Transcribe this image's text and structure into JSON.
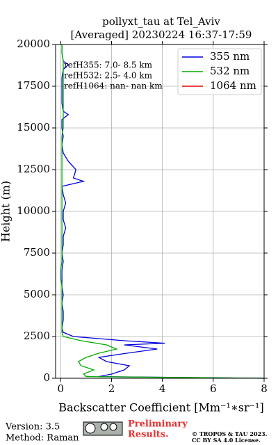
{
  "chart_data": {
    "type": "profile",
    "title": "pollyxt_tau at Tel_Aviv",
    "subtitle": "[Averaged] 20230224 16:37-17:59",
    "x_label": "Backscatter Coefficient [Mm⁻¹∗sr⁻¹]",
    "y_label": "Height (m)",
    "annotations": [
      "refH355:  7.0- 8.5 km",
      "refH532:  2.5- 4.0 km",
      "refH1064:  nan- nan km"
    ],
    "heights": [
      0,
      100,
      250,
      500,
      750,
      1000,
      1250,
      1500,
      1750,
      2000,
      2100,
      2250,
      2500,
      2750,
      3000,
      3500,
      4000,
      4500,
      5000,
      5500,
      6000,
      6500,
      7000,
      7500,
      8000,
      8500,
      9000,
      9500,
      10000,
      10500,
      11000,
      11500,
      11800,
      12000,
      12500,
      13000,
      13500,
      14000,
      14500,
      15000,
      15500,
      15800,
      16000,
      16500,
      17000,
      17500,
      18000,
      18500,
      18800,
      19000,
      19500,
      20000
    ],
    "series": [
      {
        "name": "355 nm",
        "color": "#0000dd",
        "values": [
          8,
          1.5,
          2.0,
          2.5,
          2.7,
          1.8,
          1.5,
          2.6,
          3.8,
          2.5,
          4.1,
          2.5,
          0.5,
          0.1,
          0.05,
          0.1,
          0.1,
          0.05,
          0.1,
          0.05,
          0.05,
          0.05,
          0.1,
          0.05,
          0.1,
          0.1,
          0.2,
          0.1,
          0.1,
          0.2,
          0.1,
          0.05,
          0.9,
          0.5,
          0.6,
          0.3,
          0.1,
          0.05,
          0.1,
          0.05,
          0.05,
          0.3,
          0.1,
          0.05,
          0.05,
          0.05,
          0.05,
          0.1,
          0.3,
          0.1,
          0.05,
          0.05
        ]
      },
      {
        "name": "532 nm",
        "color": "#00aa00",
        "values": [
          8,
          1.0,
          0.9,
          1.3,
          0.8,
          0.7,
          1.0,
          1.5,
          2.2,
          1.8,
          1.4,
          0.8,
          0.1,
          0.05,
          0.05,
          0.05,
          0.05,
          0.05,
          0.05,
          0.05,
          0.0,
          0.0,
          0.05,
          0.05,
          0.05,
          0.05,
          0.05,
          0.05,
          0.05,
          0.05,
          0.05,
          0.05,
          0.05,
          0.05,
          0.05,
          0.05,
          0.05,
          0.05,
          0.05,
          0.1,
          0.1,
          0.1,
          0.1,
          0.1,
          0.1,
          0.1,
          0.1,
          0.1,
          0.1,
          0.1,
          0.05,
          0.05
        ]
      },
      {
        "name": "1064 nm",
        "color": "#dd0000",
        "values": [
          null,
          null,
          null,
          null,
          null,
          null,
          null,
          null,
          null,
          null,
          null,
          null,
          null,
          null,
          null,
          null,
          null,
          null,
          null,
          null,
          null,
          null,
          null,
          null,
          null,
          null,
          null,
          null,
          null,
          null,
          null,
          null,
          null,
          null,
          null,
          null,
          null,
          null,
          null,
          null,
          null,
          null,
          null,
          null,
          null,
          null,
          null,
          null,
          null,
          null,
          null,
          null
        ]
      }
    ],
    "xlim": [
      -0.2,
      8
    ],
    "ylim": [
      0,
      20000
    ],
    "xticks": [
      0,
      2,
      4,
      6,
      8
    ],
    "yticks": [
      0,
      2500,
      5000,
      7500,
      10000,
      12500,
      15000,
      17500,
      20000
    ],
    "grid": true,
    "legend": "upper right"
  },
  "footer": {
    "version": "Version: 3.5",
    "method": "Method: Raman",
    "notice": [
      "Preliminary",
      "Results."
    ],
    "copyright": [
      "© TROPOS & TAU 2023.",
      "CC BY SA 4.0 License."
    ]
  }
}
